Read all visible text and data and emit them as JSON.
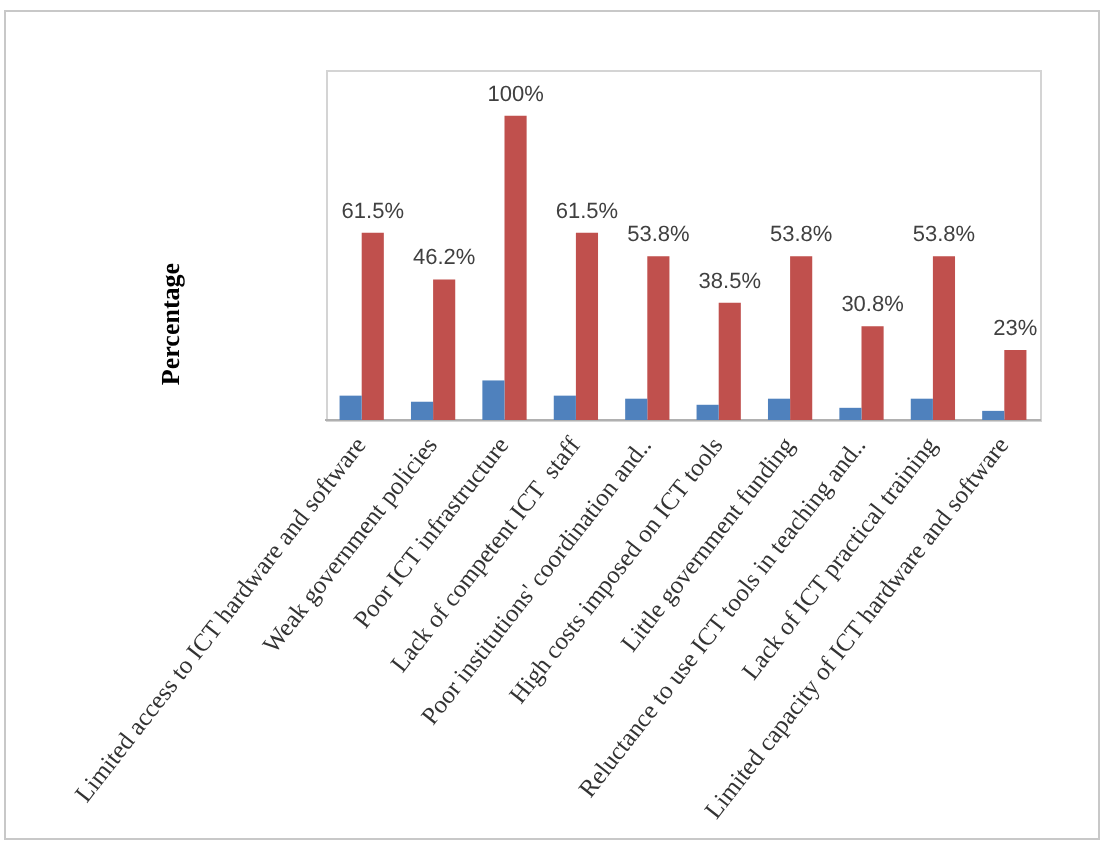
{
  "chart_data": {
    "type": "bar",
    "ylabel": "Percentage",
    "categories": [
      "Limited access to ICT hardware and software",
      "Weak government policies",
      "Poor ICT infrastructure",
      "Lack of competent ICT  staff",
      "Poor institutions' coordination and..",
      "High costs imposed on ICT tools",
      "Little government funding",
      "Reluctance to use ICT tools in teaching and..",
      "Lack of ICT practical training",
      "Limited capacity of ICT hardware and software"
    ],
    "series": [
      {
        "color": "#4f81bd",
        "values": [
          8,
          6,
          13,
          8,
          7,
          5,
          7,
          4,
          7,
          3
        ]
      },
      {
        "color": "#c0504d",
        "values": [
          61.5,
          46.2,
          100,
          61.5,
          53.8,
          38.5,
          53.8,
          30.8,
          53.8,
          23
        ],
        "value_labels": [
          "61.5%",
          "46.2%",
          "100%",
          "61.5%",
          "53.8%",
          "38.5%",
          "53.8%",
          "30.8%",
          "53.8%",
          "23%"
        ]
      }
    ],
    "ylim": [
      0,
      115
    ],
    "tick_labels": "x",
    "grid": false,
    "legend": false
  }
}
